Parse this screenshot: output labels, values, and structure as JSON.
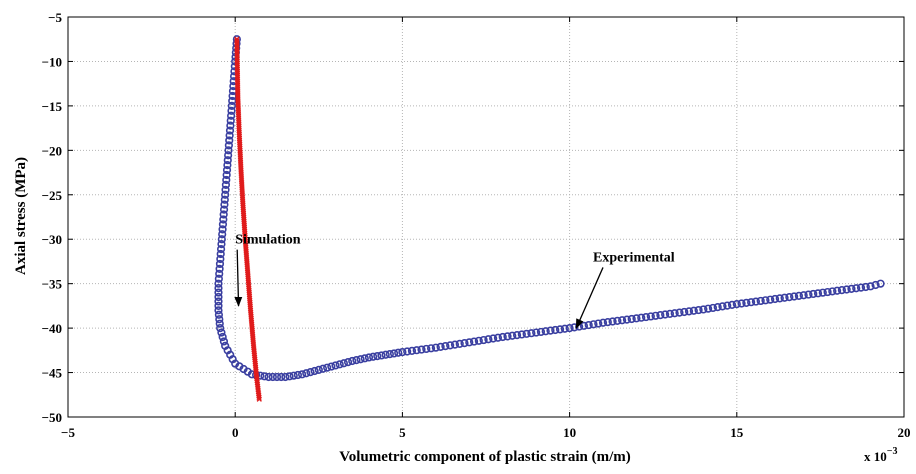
{
  "chart_data": {
    "type": "scatter",
    "title": "",
    "xlabel": "Volumetric component of plastic strain   (m/m)",
    "ylabel": "Axial stress   (MPa)",
    "x_multiplier": {
      "base": "x 10",
      "exponent": "−3"
    },
    "xlim": [
      -5,
      20
    ],
    "ylim": [
      -50,
      -5
    ],
    "xticks": [
      -5,
      0,
      5,
      10,
      15,
      20
    ],
    "xtick_labels": [
      "−5",
      "0",
      "5",
      "10",
      "15",
      "20"
    ],
    "yticks": [
      -5,
      -10,
      -15,
      -20,
      -25,
      -30,
      -35,
      -40,
      -45,
      -50
    ],
    "ytick_labels": [
      "−5",
      "−10",
      "−15",
      "−20",
      "−25",
      "−30",
      "−35",
      "−40",
      "−45",
      "−50"
    ],
    "grid": true,
    "series": [
      {
        "name": "Experimental",
        "color": "#3a3fa0",
        "marker": "o",
        "x": [
          0.05,
          0.0,
          -0.1,
          -0.2,
          -0.3,
          -0.4,
          -0.5,
          -0.5,
          -0.45,
          -0.3,
          0.0,
          0.5,
          1.0,
          1.5,
          2.0,
          2.5,
          3.0,
          3.5,
          4.0,
          4.5,
          5.0,
          6.0,
          7.0,
          8.0,
          9.0,
          10.0,
          11.0,
          12.0,
          13.0,
          14.0,
          15.0,
          16.0,
          17.0,
          18.0,
          19.0,
          19.3
        ],
        "y": [
          -7.5,
          -10,
          -15,
          -20,
          -25,
          -30,
          -35,
          -38,
          -40,
          -42,
          -44,
          -45.2,
          -45.5,
          -45.5,
          -45.2,
          -44.7,
          -44.2,
          -43.7,
          -43.3,
          -43.0,
          -42.7,
          -42.2,
          -41.6,
          -41.0,
          -40.5,
          -40.0,
          -39.4,
          -38.9,
          -38.4,
          -37.9,
          -37.3,
          -36.8,
          -36.3,
          -35.8,
          -35.3,
          -35.0
        ]
      },
      {
        "name": "Simulation",
        "color": "#e01b1b",
        "marker": "x",
        "x": [
          0.05,
          0.06,
          0.08,
          0.12,
          0.17,
          0.23,
          0.3,
          0.38,
          0.46,
          0.55,
          0.64,
          0.72
        ],
        "y": [
          -7.5,
          -10,
          -14,
          -18,
          -22,
          -26,
          -30,
          -34,
          -38,
          -42,
          -45.5,
          -48
        ]
      }
    ],
    "annotations": [
      {
        "text": "Simulation",
        "at": [
          0.0,
          -30.5
        ],
        "arrow_to": [
          0.1,
          -37.5
        ]
      },
      {
        "text": "Experimental",
        "at": [
          10.7,
          -32.5
        ],
        "arrow_to": [
          10.2,
          -40.0
        ]
      }
    ]
  }
}
